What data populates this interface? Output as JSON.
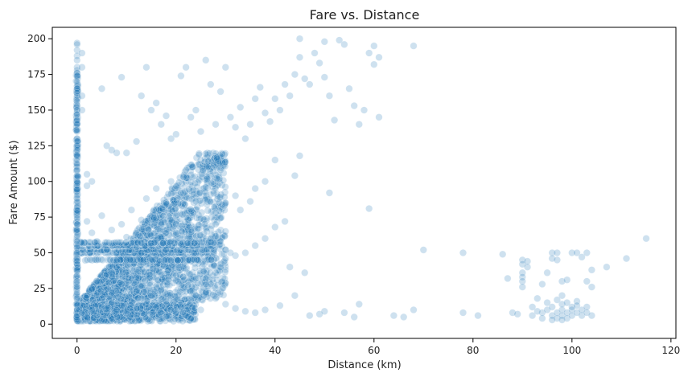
{
  "chart_data": {
    "type": "scatter",
    "title": "Fare vs. Distance",
    "xlabel": "Distance (km)",
    "ylabel": "Fare Amount ($)",
    "xlim": [
      -5,
      121
    ],
    "ylim": [
      -10,
      208
    ],
    "x_ticks": [
      0,
      20,
      40,
      60,
      80,
      100,
      120
    ],
    "y_ticks": [
      0,
      25,
      50,
      75,
      100,
      125,
      150,
      175,
      200
    ],
    "grid": false,
    "legend": "none",
    "point_color": "#1f77b4",
    "point_alpha": 0.22,
    "series": [
      {
        "points": [
          [
            0,
            197
          ],
          [
            0,
            196
          ],
          [
            0,
            192
          ],
          [
            0,
            188
          ],
          [
            0,
            185
          ],
          [
            0,
            180
          ],
          [
            0,
            178
          ],
          [
            0,
            176
          ],
          [
            0,
            174
          ],
          [
            0,
            170
          ],
          [
            0,
            165
          ],
          [
            0,
            162
          ],
          [
            0,
            160
          ],
          [
            0,
            156
          ],
          [
            0,
            150
          ],
          [
            0,
            147
          ],
          [
            0,
            143
          ],
          [
            0,
            140
          ],
          [
            0,
            135
          ],
          [
            0,
            130
          ],
          [
            0,
            128
          ],
          [
            0,
            125
          ],
          [
            0,
            122
          ],
          [
            0,
            118
          ],
          [
            0,
            115
          ],
          [
            0,
            112
          ],
          [
            0,
            108
          ],
          [
            0,
            104
          ],
          [
            0,
            100
          ],
          [
            0,
            97
          ],
          [
            0,
            94
          ],
          [
            0,
            90
          ],
          [
            0,
            86
          ],
          [
            0,
            82
          ],
          [
            0,
            78
          ],
          [
            0,
            74
          ],
          [
            0,
            70
          ],
          [
            0,
            66
          ],
          [
            0,
            62
          ],
          [
            0,
            58
          ],
          [
            0,
            54
          ],
          [
            0,
            50
          ],
          [
            0,
            46
          ],
          [
            0,
            42
          ],
          [
            0,
            38
          ],
          [
            0,
            34
          ],
          [
            0,
            30
          ],
          [
            0,
            26
          ],
          [
            0,
            22
          ],
          [
            0,
            18
          ],
          [
            0,
            14
          ],
          [
            0,
            10
          ],
          [
            0,
            6
          ],
          [
            0,
            3
          ],
          [
            1,
            190
          ],
          [
            1,
            180
          ],
          [
            1,
            160
          ],
          [
            1,
            150
          ],
          [
            2,
            105
          ],
          [
            3,
            100
          ],
          [
            2,
            97
          ],
          [
            5,
            165
          ],
          [
            6,
            125
          ],
          [
            7,
            122
          ],
          [
            8,
            120
          ],
          [
            9,
            173
          ],
          [
            10,
            120
          ],
          [
            12,
            128
          ],
          [
            13,
            160
          ],
          [
            14,
            180
          ],
          [
            15,
            150
          ],
          [
            16,
            155
          ],
          [
            17,
            140
          ],
          [
            18,
            146
          ],
          [
            19,
            130
          ],
          [
            20,
            133
          ],
          [
            21,
            174
          ],
          [
            22,
            180
          ],
          [
            23,
            145
          ],
          [
            24,
            150
          ],
          [
            25,
            135
          ],
          [
            26,
            185
          ],
          [
            27,
            168
          ],
          [
            28,
            140
          ],
          [
            29,
            163
          ],
          [
            30,
            180
          ],
          [
            31,
            145
          ],
          [
            32,
            138
          ],
          [
            33,
            152
          ],
          [
            34,
            130
          ],
          [
            35,
            140
          ],
          [
            36,
            158
          ],
          [
            37,
            166
          ],
          [
            38,
            148
          ],
          [
            39,
            142
          ],
          [
            40,
            158
          ],
          [
            41,
            150
          ],
          [
            42,
            168
          ],
          [
            43,
            160
          ],
          [
            44,
            175
          ],
          [
            45,
            187
          ],
          [
            45,
            200
          ],
          [
            46,
            172
          ],
          [
            47,
            168
          ],
          [
            48,
            190
          ],
          [
            49,
            183
          ],
          [
            50,
            173
          ],
          [
            50,
            198
          ],
          [
            51,
            160
          ],
          [
            52,
            143
          ],
          [
            53,
            199
          ],
          [
            54,
            196
          ],
          [
            55,
            165
          ],
          [
            56,
            153
          ],
          [
            57,
            140
          ],
          [
            58,
            150
          ],
          [
            59,
            190
          ],
          [
            60,
            182
          ],
          [
            60,
            195
          ],
          [
            61,
            187
          ],
          [
            61,
            145
          ],
          [
            68,
            195
          ],
          [
            59,
            81
          ],
          [
            51,
            92
          ],
          [
            44,
            104
          ],
          [
            45,
            118
          ],
          [
            40,
            115
          ],
          [
            38,
            100
          ],
          [
            36,
            95
          ],
          [
            35,
            86
          ],
          [
            33,
            80
          ],
          [
            32,
            90
          ],
          [
            30,
            85
          ],
          [
            28,
            78
          ],
          [
            42,
            72
          ],
          [
            40,
            68
          ],
          [
            38,
            60
          ],
          [
            36,
            55
          ],
          [
            34,
            50
          ],
          [
            32,
            48
          ],
          [
            30,
            52
          ],
          [
            43,
            40
          ],
          [
            46,
            36
          ],
          [
            44,
            20
          ],
          [
            41,
            13
          ],
          [
            38,
            10
          ],
          [
            36,
            8
          ],
          [
            34,
            9
          ],
          [
            32,
            11
          ],
          [
            30,
            14
          ],
          [
            28,
            18
          ],
          [
            26,
            22
          ],
          [
            47,
            6
          ],
          [
            49,
            7
          ],
          [
            50,
            9
          ],
          [
            54,
            8
          ],
          [
            56,
            5
          ],
          [
            57,
            14
          ],
          [
            64,
            6
          ],
          [
            66,
            5
          ],
          [
            68,
            10
          ],
          [
            70,
            52
          ],
          [
            78,
            50
          ],
          [
            78,
            8
          ],
          [
            81,
            6
          ],
          [
            86,
            49
          ],
          [
            87,
            32
          ],
          [
            88,
            8
          ],
          [
            89,
            7
          ],
          [
            90,
            45
          ],
          [
            90,
            42
          ],
          [
            90,
            36
          ],
          [
            90,
            33
          ],
          [
            90,
            30
          ],
          [
            90,
            26
          ],
          [
            91,
            44
          ],
          [
            91,
            40
          ],
          [
            92,
            6
          ],
          [
            93,
            18
          ],
          [
            94,
            28
          ],
          [
            95,
            36
          ],
          [
            96,
            50
          ],
          [
            96,
            46
          ],
          [
            97,
            50
          ],
          [
            97,
            45
          ],
          [
            98,
            30
          ],
          [
            98,
            20
          ],
          [
            99,
            31
          ],
          [
            100,
            50
          ],
          [
            101,
            50
          ],
          [
            102,
            47
          ],
          [
            103,
            30
          ],
          [
            103,
            50
          ],
          [
            104,
            38
          ],
          [
            104,
            26
          ],
          [
            107,
            40
          ],
          [
            111,
            46
          ],
          [
            115,
            60
          ],
          [
            94,
            8
          ],
          [
            95,
            10
          ],
          [
            96,
            6
          ],
          [
            96,
            12
          ],
          [
            97,
            8
          ],
          [
            97,
            4
          ],
          [
            98,
            10
          ],
          [
            98,
            6
          ],
          [
            98,
            14
          ],
          [
            99,
            8
          ],
          [
            99,
            4
          ],
          [
            100,
            10
          ],
          [
            100,
            6
          ],
          [
            100,
            12
          ],
          [
            101,
            8
          ],
          [
            101,
            16
          ],
          [
            102,
            6
          ],
          [
            102,
            10
          ],
          [
            103,
            8
          ],
          [
            103,
            12
          ],
          [
            104,
            6
          ],
          [
            95,
            15
          ],
          [
            97,
            17
          ],
          [
            99,
            15
          ],
          [
            101,
            13
          ],
          [
            93,
            9
          ],
          [
            92,
            12
          ],
          [
            94,
            4
          ],
          [
            96,
            3
          ],
          [
            98,
            3
          ],
          [
            2,
            72
          ],
          [
            3,
            64
          ],
          [
            4,
            58
          ],
          [
            5,
            76
          ],
          [
            6,
            52
          ],
          [
            7,
            66
          ],
          [
            8,
            44
          ],
          [
            9,
            70
          ],
          [
            10,
            61
          ],
          [
            11,
            80
          ],
          [
            12,
            54
          ],
          [
            13,
            73
          ],
          [
            14,
            88
          ],
          [
            15,
            62
          ],
          [
            16,
            95
          ],
          [
            17,
            70
          ],
          [
            18,
            84
          ],
          [
            19,
            100
          ],
          [
            20,
            76
          ],
          [
            21,
            92
          ],
          [
            22,
            108
          ],
          [
            23,
            66
          ],
          [
            24,
            86
          ],
          [
            25,
            74
          ],
          [
            26,
            96
          ],
          [
            27,
            60
          ],
          [
            28,
            70
          ],
          [
            29,
            58
          ],
          [
            30,
            65
          ],
          [
            31,
            50
          ],
          [
            2,
            20
          ],
          [
            3,
            25
          ],
          [
            4,
            30
          ],
          [
            5,
            18
          ],
          [
            6,
            35
          ],
          [
            7,
            22
          ],
          [
            8,
            40
          ],
          [
            9,
            28
          ],
          [
            10,
            45
          ],
          [
            11,
            32
          ],
          [
            12,
            38
          ],
          [
            13,
            50
          ],
          [
            14,
            42
          ],
          [
            15,
            55
          ],
          [
            16,
            48
          ],
          [
            17,
            60
          ],
          [
            18,
            52
          ],
          [
            19,
            58
          ],
          [
            20,
            64
          ],
          [
            21,
            56
          ],
          [
            1,
            8
          ],
          [
            2,
            5
          ],
          [
            3,
            10
          ],
          [
            4,
            6
          ],
          [
            5,
            12
          ],
          [
            6,
            8
          ],
          [
            7,
            15
          ],
          [
            8,
            10
          ],
          [
            9,
            13
          ],
          [
            10,
            9
          ],
          [
            11,
            16
          ],
          [
            12,
            11
          ],
          [
            13,
            18
          ],
          [
            14,
            14
          ],
          [
            15,
            20
          ],
          [
            16,
            12
          ],
          [
            17,
            24
          ],
          [
            18,
            16
          ],
          [
            19,
            10
          ],
          [
            20,
            8
          ],
          [
            21,
            12
          ],
          [
            22,
            6
          ],
          [
            23,
            4
          ],
          [
            24,
            20
          ],
          [
            25,
            10
          ],
          [
            26,
            32
          ],
          [
            27,
            28
          ],
          [
            28,
            36
          ],
          [
            29,
            40
          ],
          [
            30,
            46
          ]
        ]
      }
    ]
  }
}
